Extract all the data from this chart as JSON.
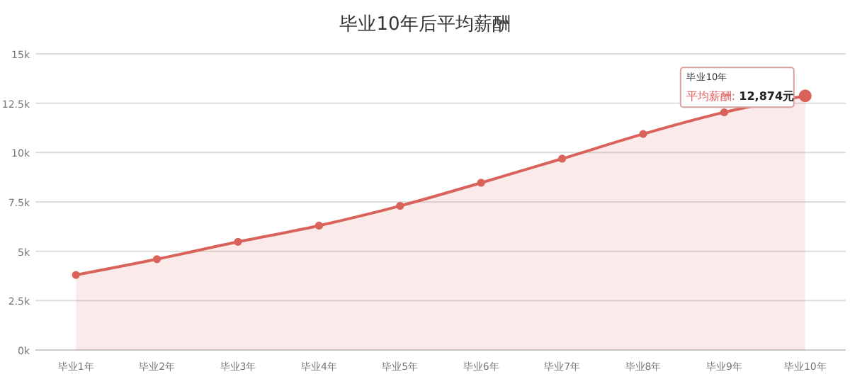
{
  "chart_data": {
    "type": "area",
    "title": "毕业10年后平均薪酬",
    "categories": [
      "毕业1年",
      "毕业2年",
      "毕业3年",
      "毕业4年",
      "毕业5年",
      "毕业6年",
      "毕业7年",
      "毕业8年",
      "毕业9年",
      "毕业10年"
    ],
    "series": [
      {
        "color": "#d9625a",
        "values": [
          3800,
          4600,
          5480,
          6300,
          7300,
          8470,
          9690,
          10940,
          12040,
          12874
        ]
      }
    ],
    "ylim": [
      0,
      15000
    ],
    "yticks": [
      {
        "value": 0,
        "label": "0k"
      },
      {
        "value": 2500,
        "label": "2.5k"
      },
      {
        "value": 5000,
        "label": "5k"
      },
      {
        "value": 7500,
        "label": "7.5k"
      },
      {
        "value": 10000,
        "label": "10k"
      },
      {
        "value": 12500,
        "label": "12.5k"
      },
      {
        "value": 15000,
        "label": "15k"
      }
    ],
    "grid": "y",
    "marker": "circle",
    "annotations": [
      "毕业10年",
      {
        "text": "平均薪酬: 12,874元",
        "x": "毕业10年",
        "y": 12874
      }
    ]
  }
}
